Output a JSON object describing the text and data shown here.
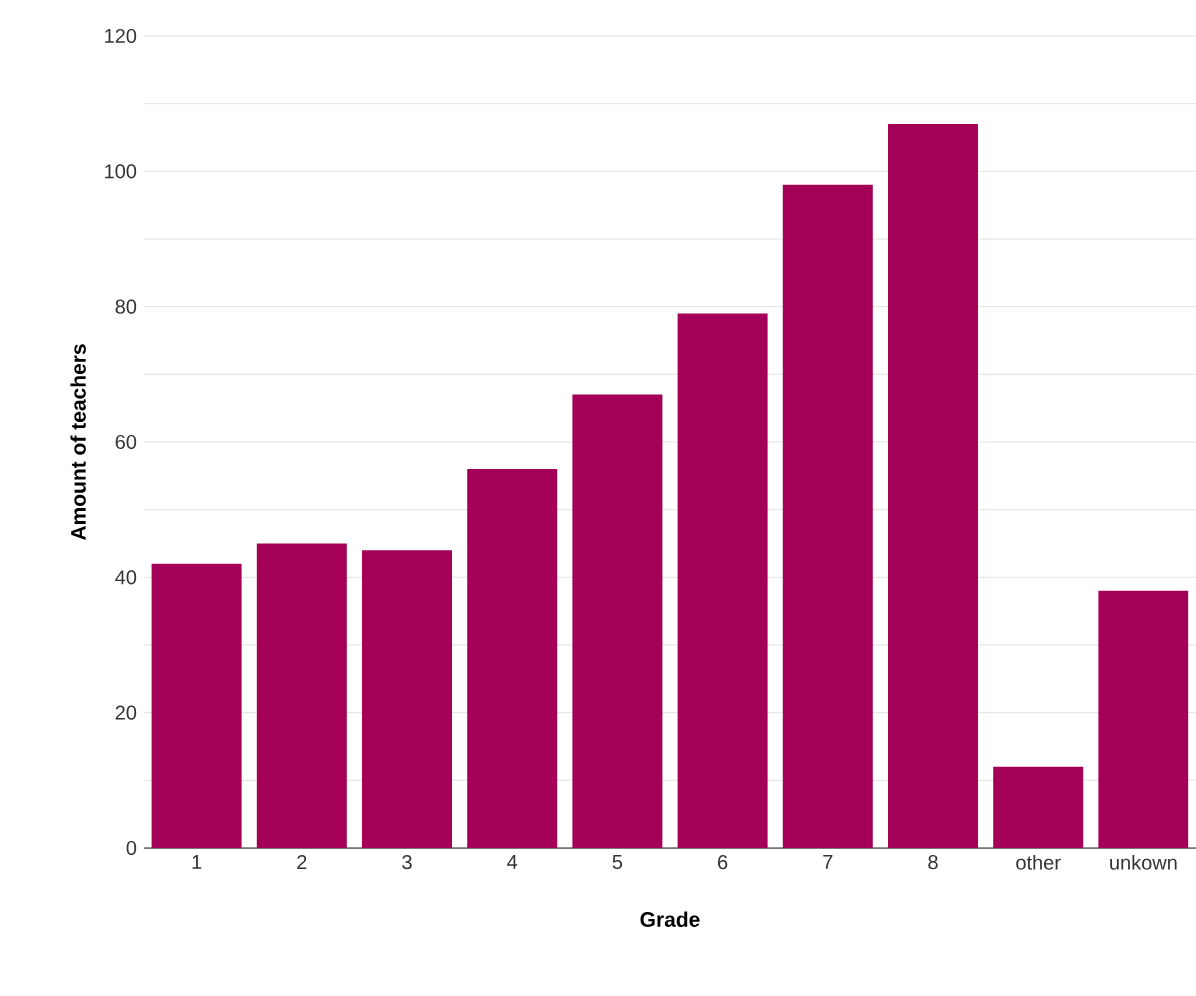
{
  "chart_data": {
    "type": "bar",
    "xlabel": "Grade",
    "ylabel": "Amount of teachers",
    "categories": [
      "1",
      "2",
      "3",
      "4",
      "5",
      "6",
      "7",
      "8",
      "other",
      "unkown"
    ],
    "values": [
      42,
      45,
      44,
      56,
      67,
      79,
      98,
      107,
      12,
      38
    ],
    "color": "#a50057",
    "ylim": [
      0,
      120
    ],
    "yticks": [
      0,
      {
        "value": 10,
        "label": null
      },
      20,
      {
        "value": 30,
        "label": null
      },
      40,
      {
        "value": 50,
        "label": null
      },
      60,
      {
        "value": 70,
        "label": null
      },
      80,
      {
        "value": 90,
        "label": null
      },
      100,
      {
        "value": 110,
        "label": null
      },
      120
    ],
    "grid": "y"
  }
}
